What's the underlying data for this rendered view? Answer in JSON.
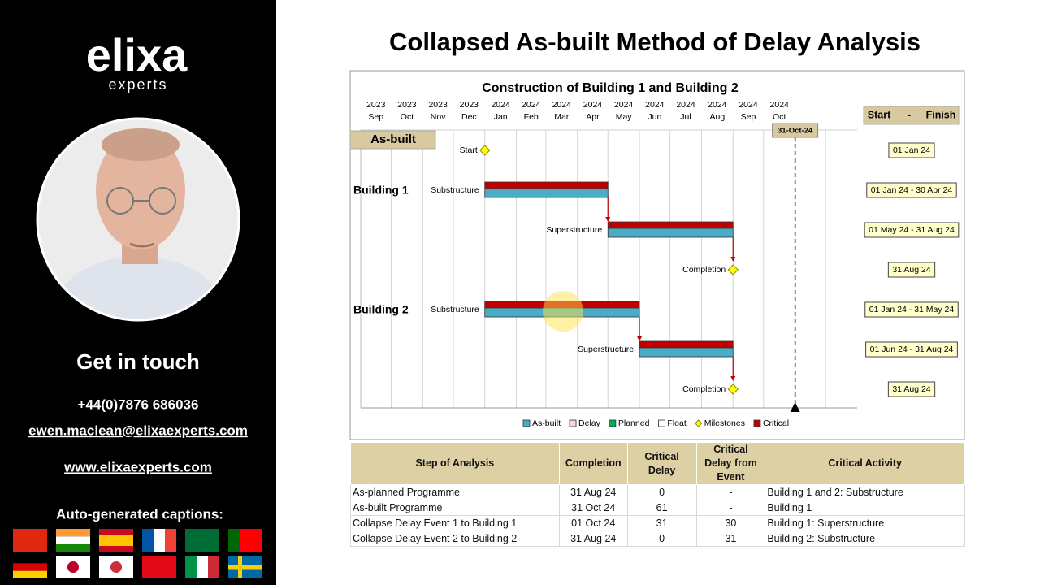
{
  "sidebar": {
    "logo": "elixa",
    "logo_sub": "experts",
    "contact_heading": "Get in touch",
    "phone": "+44(0)7876 686036",
    "email": "ewen.maclean@elixaexperts.com",
    "website": "www.elixaexperts.com",
    "captions_label": "Auto-generated captions:"
  },
  "title": "Collapsed As-built Method of Delay Analysis",
  "chart_data": {
    "type": "gantt",
    "title": "Construction of Building 1 and Building 2",
    "section_label": "As-built",
    "period_header": [
      "Start",
      "-",
      "Finish"
    ],
    "xlim": [
      "2023-09",
      "2025-01"
    ],
    "xticks": [
      {
        "value": "2023-09",
        "label": [
          "2023",
          "Sep"
        ]
      },
      {
        "value": "2023-10",
        "label": [
          "2023",
          "Oct"
        ]
      },
      {
        "value": "2023-11",
        "label": [
          "2023",
          "Nov"
        ]
      },
      {
        "value": "2023-12",
        "label": [
          "2023",
          "Dec"
        ]
      },
      {
        "value": "2024-01",
        "label": [
          "2024",
          "Jan"
        ]
      },
      {
        "value": "2024-02",
        "label": [
          "2024",
          "Feb"
        ]
      },
      {
        "value": "2024-03",
        "label": [
          "2024",
          "Mar"
        ]
      },
      {
        "value": "2024-04",
        "label": [
          "2024",
          "Apr"
        ]
      },
      {
        "value": "2024-05",
        "label": [
          "2024",
          "May"
        ]
      },
      {
        "value": "2024-06",
        "label": [
          "2024",
          "Jun"
        ]
      },
      {
        "value": "2024-07",
        "label": [
          "2024",
          "Jul"
        ]
      },
      {
        "value": "2024-08",
        "label": [
          "2024",
          "Aug"
        ]
      },
      {
        "value": "2024-09",
        "label": [
          "2024",
          "Sep"
        ]
      },
      {
        "value": "2024-10",
        "label": [
          "2024",
          "Oct"
        ]
      },
      {
        "value": "2024-11",
        "label": null
      },
      {
        "value": "2024-12",
        "label": null
      }
    ],
    "grid": true,
    "data_date": {
      "value": "2024-10-31",
      "label": "31-Oct-24"
    },
    "rows": [
      {
        "label": "Start",
        "kind": "milestone",
        "start": "2024-01-01",
        "period": "01 Jan 24"
      },
      {
        "group": "Building 1",
        "label": "Substructure",
        "kind": "bar",
        "start": "2024-01-01",
        "finish": "2024-04-30",
        "critical": true,
        "period": "01 Jan 24 - 30 Apr 24"
      },
      {
        "label": "Superstructure",
        "kind": "bar",
        "start": "2024-05-01",
        "finish": "2024-08-31",
        "critical": true,
        "period": "01 May 24 - 31 Aug 24"
      },
      {
        "label": "Completion",
        "kind": "milestone",
        "finish": "2024-08-31",
        "period": "31 Aug 24"
      },
      {
        "group": "Building 2",
        "label": "Substructure",
        "kind": "bar",
        "start": "2024-01-01",
        "finish": "2024-05-31",
        "critical": true,
        "period": "01 Jan 24 - 31 May 24"
      },
      {
        "label": "Superstructure",
        "kind": "bar",
        "start": "2024-06-01",
        "finish": "2024-08-31",
        "critical": true,
        "period": "01 Jun 24 - 31 Aug 24"
      },
      {
        "label": "Completion",
        "kind": "milestone",
        "finish": "2024-08-31",
        "period": "31 Aug 24"
      }
    ],
    "legend": [
      {
        "name": "As-built",
        "color": "#4bacc6"
      },
      {
        "name": "Delay",
        "color": "#f2dcdb"
      },
      {
        "name": "Planned",
        "color": "#00b050"
      },
      {
        "name": "Float",
        "color": "#ffffff"
      },
      {
        "name": "Milestones",
        "color": "#ffff00"
      },
      {
        "name": "Critical",
        "color": "#c00000"
      }
    ],
    "legend_position": "bottom"
  },
  "table": {
    "header": [
      "Step of Analysis",
      "Completion",
      "Critical Delay",
      "Critical Delay from Event",
      "Critical Activity"
    ],
    "rows": [
      [
        "As-planned Programme",
        "31 Aug 24",
        0,
        "-",
        "Building 1 and 2: Substructure"
      ],
      [
        "As-built Programme",
        "31 Oct 24",
        61,
        "-",
        "Building 1"
      ],
      [
        "Collapse Delay Event 1 to Building 1",
        "01 Oct 24",
        31,
        30,
        "Building 1: Superstructure"
      ],
      [
        "Collapse Delay Event 2 to Building 2",
        "31 Aug 24",
        0,
        31,
        "Building 2: Substructure"
      ]
    ]
  }
}
